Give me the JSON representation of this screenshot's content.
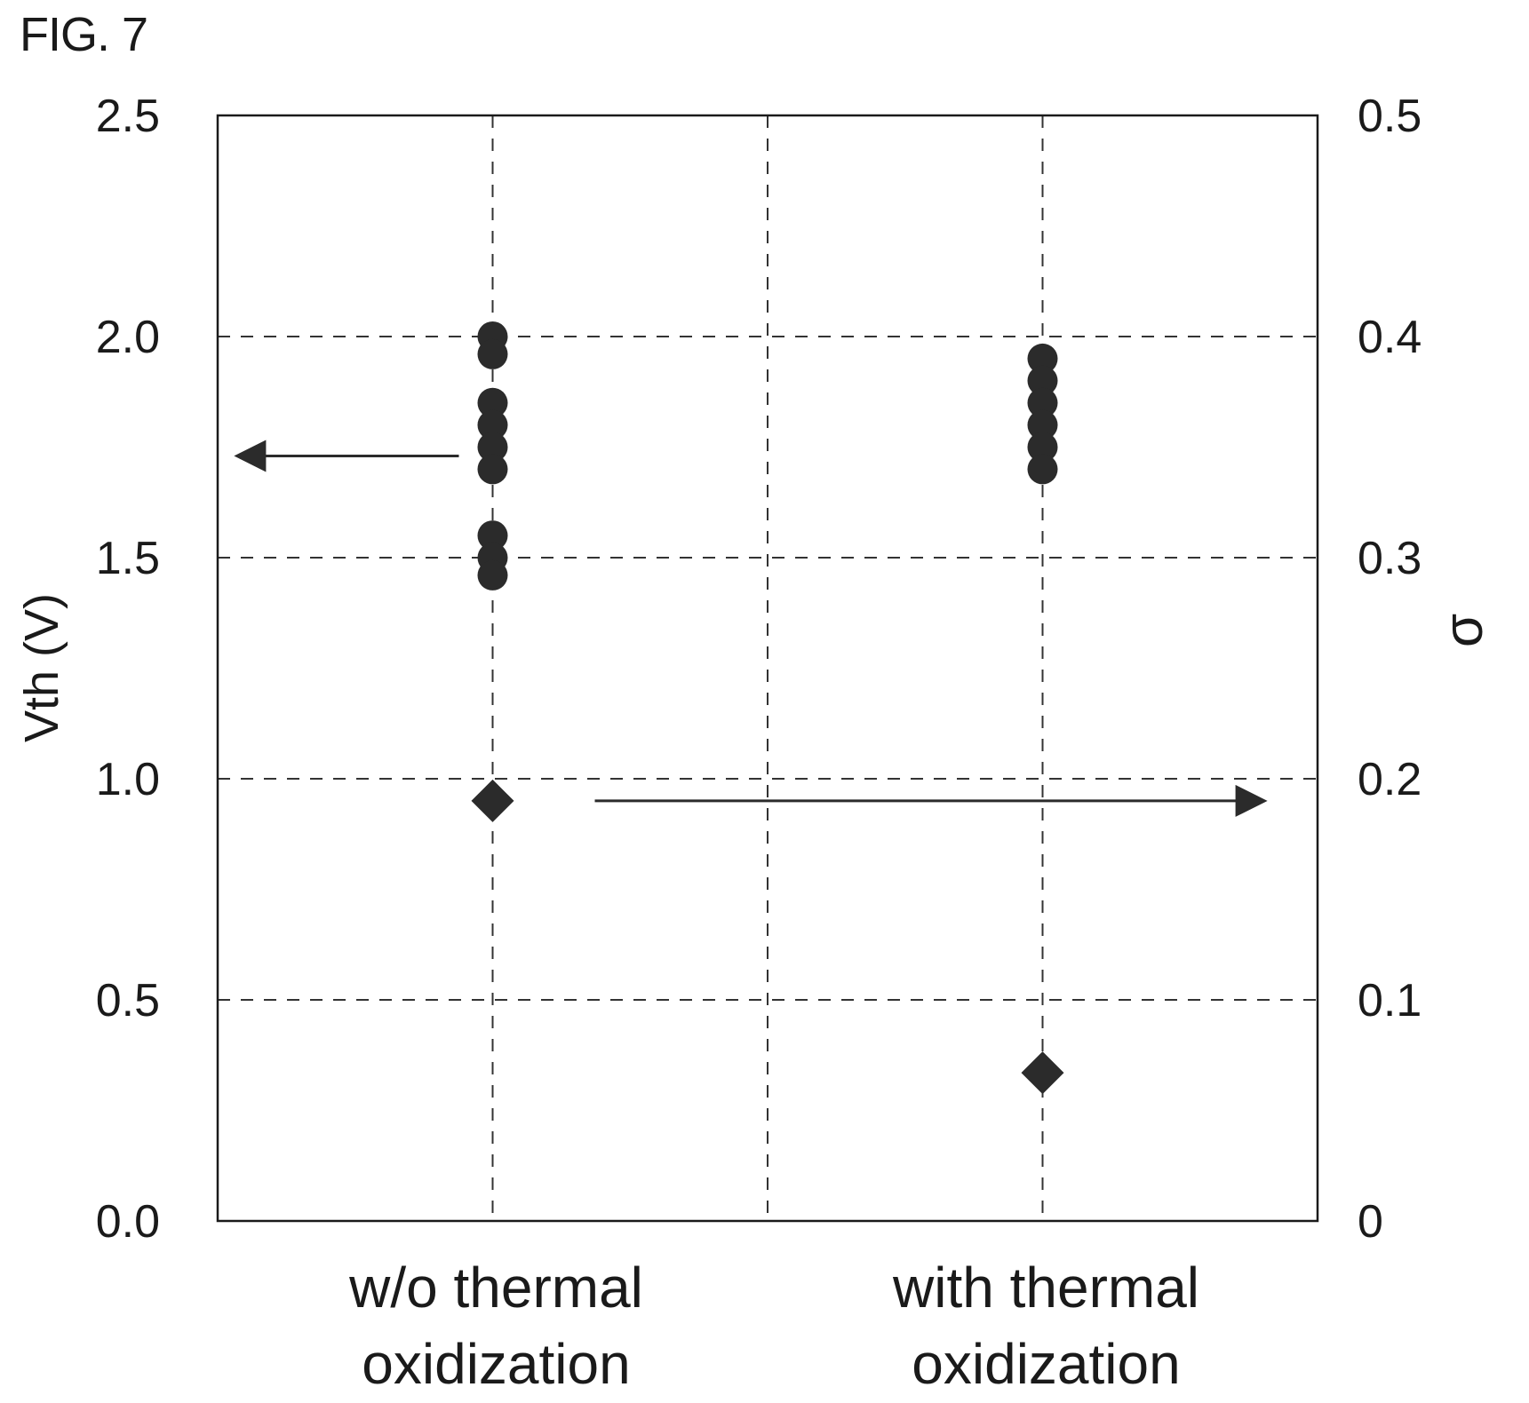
{
  "figure_label": "FIG. 7",
  "chart_data": {
    "type": "scatter",
    "title": "FIG. 7",
    "categories": [
      [
        "w/o thermal",
        "oxidization"
      ],
      [
        "with thermal",
        "oxidization"
      ]
    ],
    "left_axis": {
      "label": "Vth (V)",
      "ylim": [
        0,
        2.5
      ],
      "ticks": [
        "0.0",
        "0.5",
        "1.0",
        "1.5",
        "2.0",
        "2.5"
      ],
      "tick_values": [
        0,
        0.5,
        1.0,
        1.5,
        2.0,
        2.5
      ]
    },
    "right_axis": {
      "label": "σ",
      "ylim": [
        0,
        0.5
      ],
      "ticks": [
        "0",
        "0.1",
        "0.2",
        "0.3",
        "0.4",
        "0.5"
      ],
      "tick_values": [
        0,
        0.1,
        0.2,
        0.3,
        0.4,
        0.5
      ]
    },
    "grid": true,
    "series": [
      {
        "axis": "left",
        "marker": "circle",
        "color": "#2b2b2b",
        "points": [
          {
            "category": 0,
            "values": [
              2.0,
              1.96,
              1.85,
              1.8,
              1.75,
              1.7,
              1.55,
              1.5,
              1.46
            ]
          },
          {
            "category": 1,
            "values": [
              1.95,
              1.9,
              1.85,
              1.8,
              1.75,
              1.7
            ]
          }
        ]
      },
      {
        "axis": "right",
        "marker": "diamond",
        "color": "#2b2b2b",
        "points": [
          {
            "category": 0,
            "values": [
              0.19
            ]
          },
          {
            "category": 1,
            "values": [
              0.067
            ]
          }
        ]
      }
    ],
    "annotations": [
      {
        "type": "arrow",
        "direction": "left",
        "points_to": "left_axis",
        "series": "circle"
      },
      {
        "type": "arrow",
        "direction": "right",
        "points_to": "right_axis",
        "series": "diamond"
      }
    ]
  }
}
